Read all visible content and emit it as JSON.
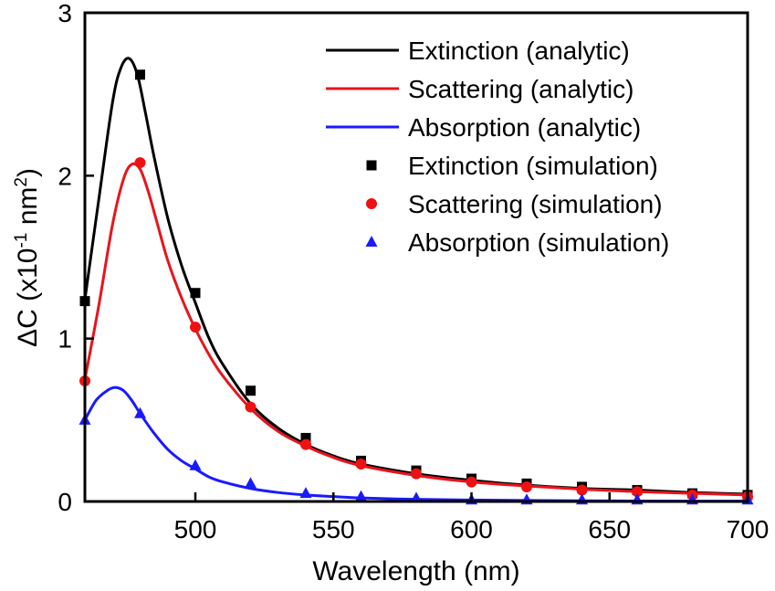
{
  "chart_data": {
    "type": "line",
    "xlabel": "Wavelength (nm)",
    "ylabel": {
      "main": "ΔC (x10",
      "exp1": "-1",
      "mid": " nm",
      "exp2": "2",
      "close": ")"
    },
    "xlim": [
      460,
      700
    ],
    "ylim": [
      0,
      3
    ],
    "xticks": [
      500,
      550,
      600,
      650,
      700
    ],
    "yticks": [
      0,
      1,
      2,
      3
    ],
    "legend_position": "top-right",
    "grid": false,
    "series": [
      {
        "name": "Extinction (analytic)",
        "kind": "line",
        "color": "#000000",
        "x": [
          460,
          465,
          470,
          473,
          476,
          479,
          482,
          485,
          490,
          495,
          500,
          505,
          510,
          520,
          530,
          540,
          550,
          560,
          580,
          600,
          620,
          640,
          660,
          680,
          700
        ],
        "y": [
          1.24,
          1.85,
          2.45,
          2.66,
          2.72,
          2.62,
          2.38,
          2.12,
          1.74,
          1.45,
          1.22,
          1.0,
          0.84,
          0.6,
          0.45,
          0.35,
          0.28,
          0.23,
          0.17,
          0.13,
          0.1,
          0.08,
          0.07,
          0.055,
          0.045
        ]
      },
      {
        "name": "Scattering (analytic)",
        "kind": "line",
        "color": "#e8141c",
        "x": [
          460,
          465,
          470,
          474,
          477,
          480,
          483,
          486,
          490,
          495,
          500,
          505,
          510,
          520,
          530,
          540,
          550,
          560,
          580,
          600,
          620,
          640,
          660,
          680,
          700
        ],
        "y": [
          0.75,
          1.2,
          1.7,
          1.98,
          2.07,
          2.04,
          1.9,
          1.72,
          1.48,
          1.25,
          1.06,
          0.9,
          0.77,
          0.57,
          0.43,
          0.34,
          0.27,
          0.22,
          0.16,
          0.12,
          0.095,
          0.075,
          0.06,
          0.05,
          0.04
        ]
      },
      {
        "name": "Absorption (analytic)",
        "kind": "line",
        "color": "#1a1aff",
        "x": [
          460,
          464,
          468,
          471,
          474,
          477,
          480,
          485,
          490,
          495,
          500,
          505,
          510,
          520,
          530,
          540,
          550,
          560,
          580,
          600,
          620,
          640,
          660,
          680,
          700
        ],
        "y": [
          0.5,
          0.62,
          0.68,
          0.7,
          0.68,
          0.62,
          0.54,
          0.42,
          0.32,
          0.25,
          0.2,
          0.15,
          0.12,
          0.08,
          0.055,
          0.04,
          0.03,
          0.022,
          0.013,
          0.009,
          0.006,
          0.004,
          0.003,
          0.002,
          0.002
        ]
      },
      {
        "name": "Extinction (simulation)",
        "kind": "marker",
        "marker": "square",
        "color": "#000000",
        "x": [
          460,
          480,
          500,
          520,
          540,
          560,
          580,
          600,
          620,
          640,
          660,
          680,
          700
        ],
        "y": [
          1.23,
          2.62,
          1.28,
          0.68,
          0.39,
          0.25,
          0.19,
          0.14,
          0.11,
          0.09,
          0.07,
          0.05,
          0.04
        ]
      },
      {
        "name": "Scattering (simulation)",
        "kind": "marker",
        "marker": "circle",
        "color": "#ee1111",
        "x": [
          460,
          480,
          500,
          520,
          540,
          560,
          580,
          600,
          620,
          640,
          660,
          680,
          700
        ],
        "y": [
          0.74,
          2.08,
          1.07,
          0.58,
          0.35,
          0.23,
          0.17,
          0.12,
          0.09,
          0.07,
          0.06,
          0.04,
          0.03
        ]
      },
      {
        "name": "Absorption (simulation)",
        "kind": "marker",
        "marker": "triangle",
        "color": "#1a1aff",
        "x": [
          460,
          480,
          500,
          520,
          540,
          560,
          580,
          600,
          620,
          640,
          660,
          680,
          700
        ],
        "y": [
          0.5,
          0.54,
          0.22,
          0.11,
          0.05,
          0.03,
          0.02,
          0.01,
          0.01,
          0.01,
          0.01,
          0.01,
          0.01
        ]
      }
    ]
  }
}
